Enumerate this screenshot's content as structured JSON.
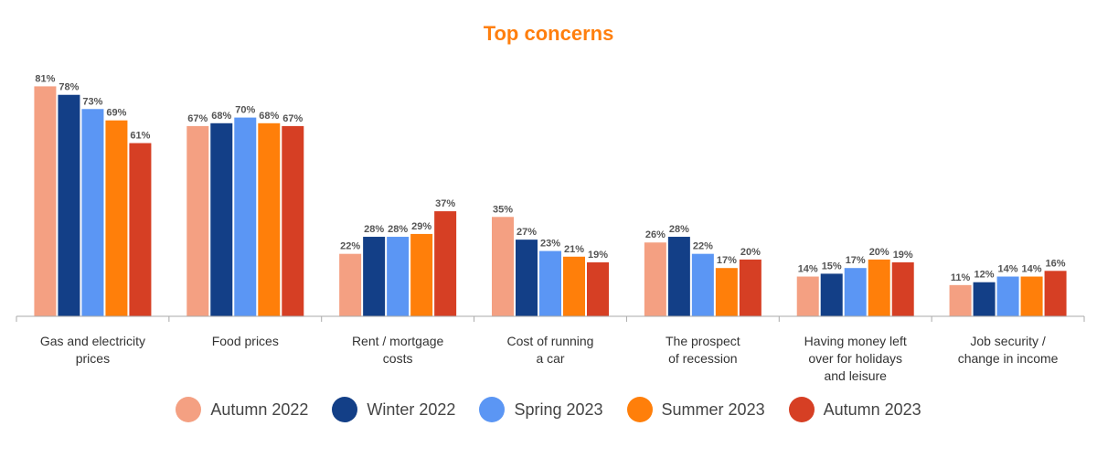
{
  "chart_data": {
    "type": "bar",
    "title": "Top concerns",
    "categories": [
      [
        "Gas and electricity",
        "prices"
      ],
      [
        "Food prices"
      ],
      [
        "Rent / mortgage",
        "costs"
      ],
      [
        "Cost of running",
        "a car"
      ],
      [
        "The prospect",
        "of recession"
      ],
      [
        "Having money left",
        "over for holidays",
        "and leisure"
      ],
      [
        "Job security /",
        "change in income"
      ]
    ],
    "series": [
      {
        "name": "Autumn 2022",
        "color": "#f4a082",
        "values": [
          81,
          67,
          22,
          35,
          26,
          14,
          11
        ]
      },
      {
        "name": "Winter 2022",
        "color": "#133f87",
        "values": [
          78,
          68,
          28,
          27,
          28,
          15,
          12
        ]
      },
      {
        "name": "Spring 2023",
        "color": "#5b96f4",
        "values": [
          73,
          70,
          28,
          23,
          22,
          17,
          14
        ]
      },
      {
        "name": "Summer 2023",
        "color": "#ff7f0a",
        "values": [
          69,
          68,
          29,
          21,
          17,
          20,
          14
        ]
      },
      {
        "name": "Autumn 2023",
        "color": "#d63f24",
        "values": [
          61,
          67,
          37,
          19,
          20,
          19,
          16
        ]
      }
    ],
    "value_suffix": "%",
    "ylim": [
      0,
      85
    ],
    "grid": false,
    "legend_position": "bottom"
  }
}
